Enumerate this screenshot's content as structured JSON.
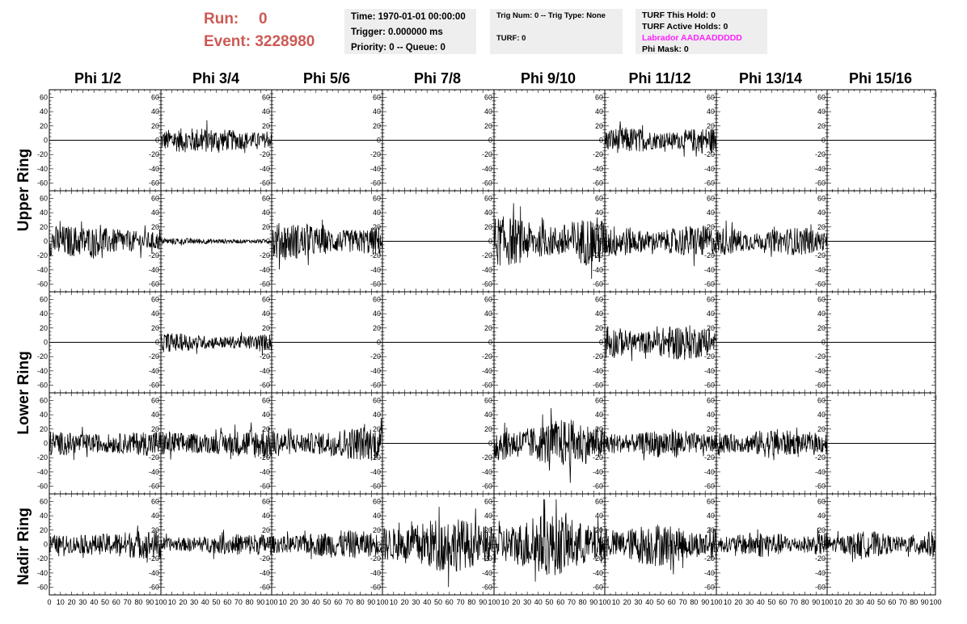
{
  "run": {
    "label": "Run:",
    "value": "0"
  },
  "event": {
    "label": "Event:",
    "value": "3228980"
  },
  "time_box": {
    "time": "Time: 1970-01-01 00:00:00",
    "trigger": "Trigger: 0.000000 ms",
    "priority": "Priority: 0 -- Queue: 0"
  },
  "trig_box": {
    "trig": "Trig Num: 0 -- Trig Type: None",
    "turf": "TURF: 0"
  },
  "turf_box": {
    "this_hold": "TURF This Hold: 0",
    "active_holds": "TURF Active Holds: 0",
    "labrador": "Labrador AADAADDDDD",
    "phi_mask": "Phi Mask: 0"
  },
  "columns": [
    "Phi 1/2",
    "Phi 3/4",
    "Phi 5/6",
    "Phi 7/8",
    "Phi 9/10",
    "Phi 11/12",
    "Phi 13/14",
    "Phi 15/16"
  ],
  "rings": [
    "Upper Ring",
    "Lower Ring",
    "Nadir Ring"
  ],
  "colors": {
    "header_red": "#cc5a55",
    "labrador": "#ff22ff",
    "info_bg": "#eeeeee"
  },
  "chart_data": {
    "type": "line",
    "grid": false,
    "layout": "5 rows x 8 columns of waveform panels",
    "ylim": [
      -65,
      65
    ],
    "y_ticks": [
      -60,
      -40,
      -20,
      0,
      20,
      40,
      60
    ],
    "xlim": [
      0,
      100
    ],
    "x_ticks": [
      0,
      10,
      20,
      30,
      40,
      50,
      60,
      70,
      80,
      90,
      100
    ],
    "amplitude_rows": [
      [
        0,
        16,
        0,
        0,
        0,
        17,
        0,
        0
      ],
      [
        20,
        4,
        24,
        0,
        32,
        21,
        18,
        0
      ],
      [
        0,
        13,
        0,
        0,
        0,
        23,
        0,
        0
      ],
      [
        20,
        21,
        22,
        0,
        31,
        19,
        19,
        0
      ],
      [
        19,
        14,
        18,
        35,
        40,
        28,
        17,
        17
      ]
    ]
  }
}
